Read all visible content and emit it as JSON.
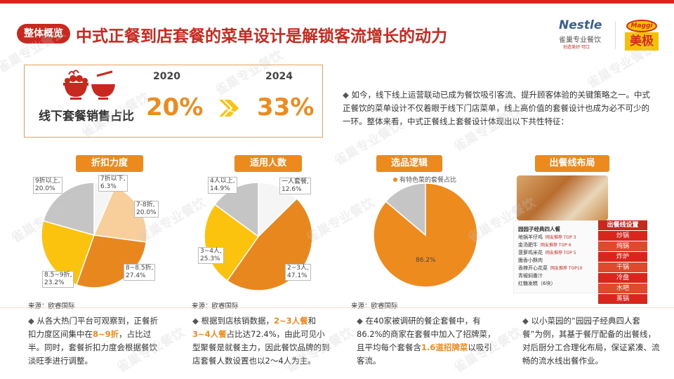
{
  "header": {
    "badge": "整体概览",
    "title": "中式正餐到店套餐的菜单设计是解锁客流增长的动力"
  },
  "logos": {
    "nestle_name": "Nestle",
    "nestle_sub": "雀巢专业餐饮",
    "nestle_tagline": "创造美好·可口",
    "maggi_name": "Maggi",
    "maggi_cn": "美极"
  },
  "stat": {
    "label": "线下套餐销售占比",
    "year_from": "2020",
    "year_to": "2024",
    "value_from": "20%",
    "value_to": "33%",
    "icon": "bowl-icon"
  },
  "intro": {
    "bullet": "◆",
    "text": "如今，线下线上运营联动已成为餐饮吸引客流、提升顾客体验的关键策略之一。中式正餐饮的菜单设计不仅着眼于线下门店菜单，线上高价值的套餐设计也成为必不可少的一环。整体来看，中式正餐线上套餐设计体现出以下共性特征："
  },
  "sections": [
    {
      "chip": "折扣力度",
      "source": "来源：欧睿国际",
      "desc": {
        "before": "从各大热门平台可观察到，正餐折扣力度区间集中在",
        "highlight": "8~9折",
        "after": "，占比过半。同时，套餐折扣力度会根据餐饮淡旺季进行调整。"
      }
    },
    {
      "chip": "适用人数",
      "source": "来源：欧睿国际",
      "desc": {
        "before": "根据到店核销数据，",
        "highlight": "2~3人餐",
        "mid": "和",
        "highlight2": "3~4人餐",
        "after": "占比达72.4%，由此可见小型聚餐是就餐主力，因此餐饮品牌的到店套餐人数设置也以2～4人为主。"
      }
    },
    {
      "chip": "选品逻辑",
      "source": "来源：欧睿国际",
      "desc": {
        "before": "在40家被调研的餐企套餐中，有86.2%的商家在套餐中加入了招牌菜，且平均每个套餐含",
        "highlight": "1.6道招牌菜",
        "after": "以吸引客流。"
      }
    },
    {
      "chip": "出餐线布局",
      "desc": {
        "before": "以小菜园的“园园子经典四人套餐”为例，其基于餐厅配备的出餐线，对后厨分工合理化布局，保证紧凑、流畅的流水线出餐作业。"
      }
    }
  ],
  "menu_card": {
    "title": "园园子经典四人餐",
    "items": [
      {
        "name": "地锅羊仔鸡",
        "tag": "网友推荐 TOP 3"
      },
      {
        "name": "金汤肥牛",
        "tag": "网友推荐 TOP 6"
      },
      {
        "name": "菠萝鸡米花",
        "tag": "网友推荐 TOP 5"
      },
      {
        "name": "脆香小酥肉",
        "tag": ""
      },
      {
        "name": "香辣开心花菜",
        "tag": "网友推荐 TOP10"
      },
      {
        "name": "青椒焖番汁",
        "tag": ""
      },
      {
        "name": "红糖发糕（6块）",
        "tag": ""
      }
    ]
  },
  "station": {
    "header": "出餐线设置",
    "items": [
      "炒锅",
      "炖锅",
      "炸炉",
      "干锅",
      "冷盘",
      "水吧",
      "蒸锅"
    ]
  },
  "chart_data": [
    {
      "type": "pie",
      "title": "折扣力度",
      "labels": [
        "7折以下",
        "7-8折",
        "8~8.5折",
        "8.5~9折",
        "9折以上"
      ],
      "values": [
        6.3,
        20.0,
        27.4,
        23.2,
        20.0
      ],
      "label_text": [
        "7折以下,\n6.3%",
        "7-8折,\n20.0%",
        "8~8.5折,\n27.4%",
        "8.5~9折,\n23.2%",
        "9折以上,\n20.0%"
      ],
      "colors": [
        "#f5f5f5",
        "#f8cf9b",
        "#e8871e",
        "#fbc20e",
        "#c5c5c5"
      ]
    },
    {
      "type": "pie",
      "title": "适用人数",
      "labels": [
        "一人套餐",
        "2~3人",
        "3~4人",
        "4人以上"
      ],
      "values": [
        12.6,
        47.1,
        25.3,
        14.9
      ],
      "label_text": [
        "一人套餐,\n12.6%",
        "2~3人,\n47.1%",
        "3~4人,\n25.3%",
        "4人以上,\n14.9%"
      ],
      "colors": [
        "#f5f5f5",
        "#e8871e",
        "#fbc20e",
        "#c5c5c5"
      ]
    },
    {
      "type": "pie",
      "title": "选品逻辑",
      "labels": [
        "有特色菜的套餐占比",
        ""
      ],
      "values": [
        86.2,
        13.8
      ],
      "label_text": [
        "86.2%",
        ""
      ],
      "legend": [
        "有特色菜的套餐占比"
      ],
      "colors": [
        "#ee8b1e",
        "#c5c5c5"
      ]
    }
  ],
  "watermark": "雀巢专业餐饮"
}
